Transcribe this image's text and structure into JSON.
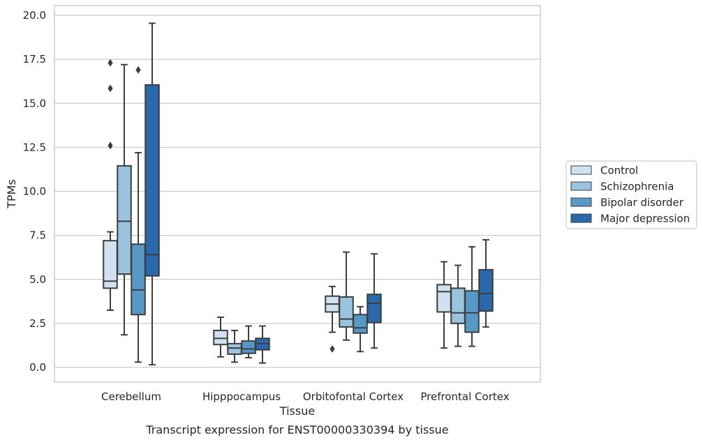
{
  "chart_data": {
    "type": "box",
    "caption": "Transcript expression for ENST00000330394 by tissue",
    "xlabel": "Tissue",
    "ylabel": "TPMs",
    "ylim": [
      -0.8,
      20.6
    ],
    "yticks": [
      "0.0",
      "2.5",
      "5.0",
      "7.5",
      "10.0",
      "12.5",
      "15.0",
      "17.5",
      "20.0"
    ],
    "ytick_values": [
      0,
      2.5,
      5,
      7.5,
      10,
      12.5,
      15,
      17.5,
      20
    ],
    "grid": "horizontal",
    "legend_position": "right",
    "categories": [
      "Cerebellum",
      "Hipppocampus",
      "Orbitofontal Cortex",
      "Prefrontal Cortex"
    ],
    "series": [
      {
        "name": "Control",
        "color": "#d0e1f2",
        "boxes": [
          {
            "whislo": 3.25,
            "q1": 4.5,
            "med": 4.9,
            "q3": 7.2,
            "whishi": 7.7,
            "fliers": [
              12.6,
              15.85,
              17.3
            ]
          },
          {
            "whislo": 0.6,
            "q1": 1.3,
            "med": 1.65,
            "q3": 2.1,
            "whishi": 2.85,
            "fliers": []
          },
          {
            "whislo": 2.0,
            "q1": 3.15,
            "med": 3.6,
            "q3": 4.05,
            "whishi": 4.6,
            "fliers": [
              1.05
            ]
          },
          {
            "whislo": 1.1,
            "q1": 3.15,
            "med": 4.3,
            "q3": 4.7,
            "whishi": 6.0,
            "fliers": []
          }
        ]
      },
      {
        "name": "Schizophrenia",
        "color": "#9ac3dd",
        "boxes": [
          {
            "whislo": 1.85,
            "q1": 5.3,
            "med": 8.3,
            "q3": 11.45,
            "whishi": 17.2,
            "fliers": []
          },
          {
            "whislo": 0.3,
            "q1": 0.75,
            "med": 1.1,
            "q3": 1.35,
            "whishi": 2.1,
            "fliers": []
          },
          {
            "whislo": 1.55,
            "q1": 2.3,
            "med": 2.75,
            "q3": 4.0,
            "whishi": 6.55,
            "fliers": []
          },
          {
            "whislo": 1.2,
            "q1": 2.5,
            "med": 3.1,
            "q3": 4.5,
            "whishi": 5.8,
            "fliers": []
          }
        ]
      },
      {
        "name": "Bipolar disorder",
        "color": "#5699c6",
        "boxes": [
          {
            "whislo": 0.3,
            "q1": 3.0,
            "med": 4.4,
            "q3": 7.0,
            "whishi": 12.2,
            "fliers": [
              16.9
            ]
          },
          {
            "whislo": 0.55,
            "q1": 0.8,
            "med": 1.05,
            "q3": 1.5,
            "whishi": 2.35,
            "fliers": []
          },
          {
            "whislo": 0.9,
            "q1": 1.95,
            "med": 2.25,
            "q3": 3.0,
            "whishi": 3.45,
            "fliers": []
          },
          {
            "whislo": 1.2,
            "q1": 2.0,
            "med": 3.1,
            "q3": 4.35,
            "whishi": 6.85,
            "fliers": []
          }
        ]
      },
      {
        "name": "Major depression",
        "color": "#2a69ab",
        "boxes": [
          {
            "whislo": 0.15,
            "q1": 5.2,
            "med": 6.4,
            "q3": 16.05,
            "whishi": 19.55,
            "fliers": []
          },
          {
            "whislo": 0.25,
            "q1": 1.0,
            "med": 1.35,
            "q3": 1.65,
            "whishi": 2.35,
            "fliers": []
          },
          {
            "whislo": 1.1,
            "q1": 2.55,
            "med": 3.65,
            "q3": 4.15,
            "whishi": 6.45,
            "fliers": []
          },
          {
            "whislo": 2.3,
            "q1": 3.2,
            "med": 4.2,
            "q3": 5.55,
            "whishi": 7.25,
            "fliers": []
          }
        ]
      }
    ]
  }
}
